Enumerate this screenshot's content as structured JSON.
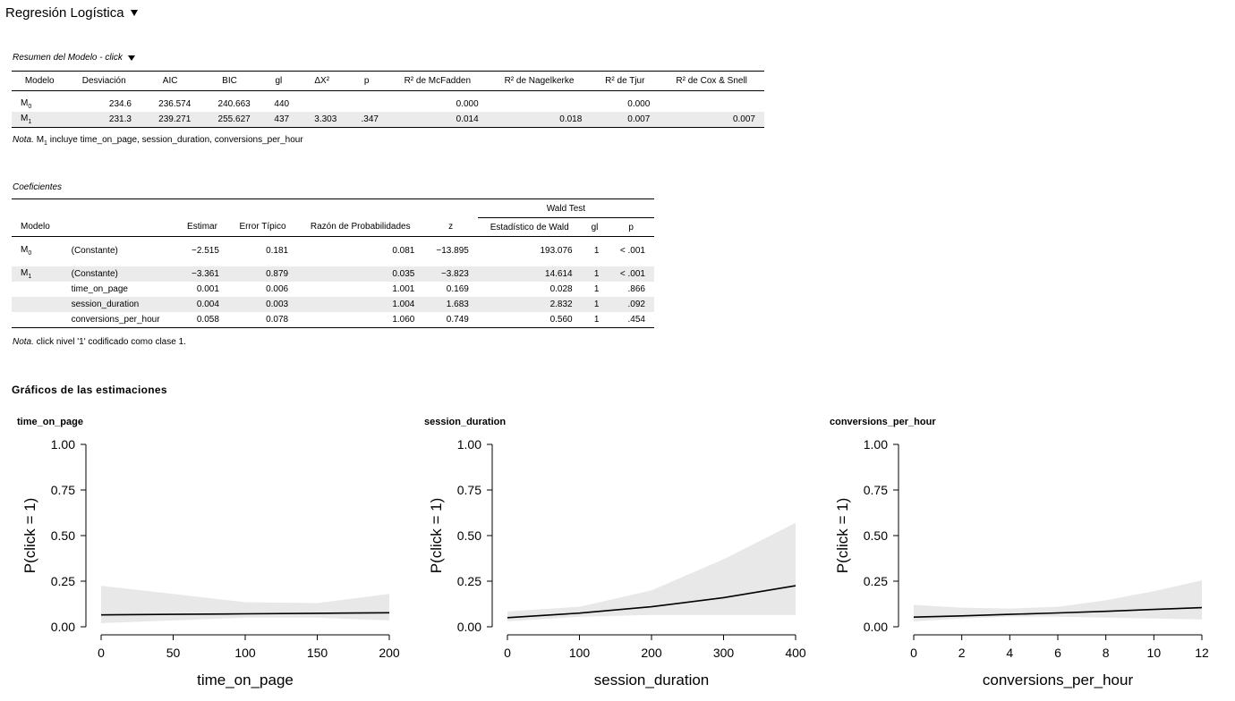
{
  "header": {
    "title": "Regresión Logística"
  },
  "model_summary": {
    "title": "Resumen del Modelo - click",
    "columns": [
      "Modelo",
      "Desviación",
      "AIC",
      "BIC",
      "gl",
      "ΔX²",
      "p",
      "R² de McFadden",
      "R² de Nagelkerke",
      "R² de Tjur",
      "R² de Cox & Snell"
    ],
    "rows": [
      {
        "modelo": "M",
        "sub": "0",
        "cells": [
          "234.6",
          "236.574",
          "240.663",
          "440",
          "",
          "",
          "0.000",
          "",
          "0.000",
          ""
        ]
      },
      {
        "modelo": "M",
        "sub": "1",
        "cells": [
          "231.3",
          "239.271",
          "255.627",
          "437",
          "3.303",
          ".347",
          "0.014",
          "0.018",
          "0.007",
          "0.007"
        ]
      }
    ],
    "note_label": "Nota.",
    "note_prefix": "M",
    "note_sub": "1",
    "note_text": " incluye time_on_page, session_duration, conversions_per_hour"
  },
  "coefficients": {
    "title": "Coeficientes",
    "group_header": "Wald Test",
    "columns": [
      "Modelo",
      "",
      "Estimar",
      "Error Típico",
      "Razón de Probabilidades",
      "z",
      "Estadístico de Wald",
      "gl",
      "p"
    ],
    "rows": [
      {
        "modelo": "M",
        "sub": "0",
        "cells": [
          "(Constante)",
          "−2.515",
          "0.181",
          "0.081",
          "−13.895",
          "193.076",
          "1",
          "< .001"
        ]
      },
      {
        "modelo": "M",
        "sub": "1",
        "cells": [
          "(Constante)",
          "−3.361",
          "0.879",
          "0.035",
          "−3.823",
          "14.614",
          "1",
          "< .001"
        ]
      },
      {
        "modelo": "",
        "sub": "",
        "cells": [
          "time_on_page",
          "0.001",
          "0.006",
          "1.001",
          "0.169",
          "0.028",
          "1",
          ".866"
        ]
      },
      {
        "modelo": "",
        "sub": "",
        "cells": [
          "session_duration",
          "0.004",
          "0.003",
          "1.004",
          "1.683",
          "2.832",
          "1",
          ".092"
        ]
      },
      {
        "modelo": "",
        "sub": "",
        "cells": [
          "conversions_per_hour",
          "0.058",
          "0.078",
          "1.060",
          "0.749",
          "0.560",
          "1",
          ".454"
        ]
      }
    ],
    "note_label": "Nota.",
    "note_text": " click nivel '1' codificado como clase 1."
  },
  "estimates_section": {
    "title": "Gráficos de las estimaciones"
  },
  "chart_data": [
    {
      "type": "line",
      "title": "time_on_page",
      "xlabel": "time_on_page",
      "ylabel": "P(click = 1)",
      "xlim": [
        0,
        200
      ],
      "ylim": [
        0,
        1
      ],
      "xticks": [
        "0",
        "50",
        "100",
        "150",
        "200"
      ],
      "yticks": [
        "0.00",
        "0.25",
        "0.50",
        "0.75",
        "1.00"
      ],
      "x": [
        0,
        50,
        100,
        150,
        200
      ],
      "series": [
        {
          "values": [
            0.065,
            0.068,
            0.071,
            0.074,
            0.077
          ]
        },
        {
          "band": "upper",
          "values": [
            0.225,
            0.18,
            0.135,
            0.13,
            0.18
          ]
        },
        {
          "band": "lower",
          "values": [
            0.02,
            0.035,
            0.05,
            0.05,
            0.035
          ]
        }
      ],
      "colors": {
        "line": "#000000",
        "band": "#e8e8e8"
      }
    },
    {
      "type": "line",
      "title": "session_duration",
      "xlabel": "session_duration",
      "ylabel": "P(click = 1)",
      "xlim": [
        0,
        400
      ],
      "ylim": [
        0,
        1
      ],
      "xticks": [
        "0",
        "100",
        "200",
        "300",
        "400"
      ],
      "yticks": [
        "0.00",
        "0.25",
        "0.50",
        "0.75",
        "1.00"
      ],
      "x": [
        0,
        100,
        200,
        300,
        400
      ],
      "series": [
        {
          "values": [
            0.05,
            0.075,
            0.11,
            0.16,
            0.225
          ]
        },
        {
          "band": "upper",
          "values": [
            0.085,
            0.11,
            0.2,
            0.37,
            0.57
          ]
        },
        {
          "band": "lower",
          "values": [
            0.03,
            0.055,
            0.065,
            0.065,
            0.065
          ]
        }
      ],
      "colors": {
        "line": "#000000",
        "band": "#e8e8e8"
      }
    },
    {
      "type": "line",
      "title": "conversions_per_hour",
      "xlabel": "conversions_per_hour",
      "ylabel": "P(click = 1)",
      "xlim": [
        0,
        12
      ],
      "ylim": [
        0,
        1
      ],
      "xticks": [
        "0",
        "2",
        "4",
        "6",
        "8",
        "10",
        "12"
      ],
      "yticks": [
        "0.00",
        "0.25",
        "0.50",
        "0.75",
        "1.00"
      ],
      "x": [
        0,
        2,
        4,
        6,
        8,
        10,
        12
      ],
      "series": [
        {
          "values": [
            0.053,
            0.06,
            0.068,
            0.076,
            0.085,
            0.095,
            0.105
          ]
        },
        {
          "band": "upper",
          "values": [
            0.12,
            0.105,
            0.1,
            0.11,
            0.145,
            0.195,
            0.255
          ]
        },
        {
          "band": "lower",
          "values": [
            0.03,
            0.045,
            0.055,
            0.055,
            0.05,
            0.045,
            0.04
          ]
        }
      ],
      "colors": {
        "line": "#000000",
        "band": "#e8e8e8"
      }
    }
  ]
}
